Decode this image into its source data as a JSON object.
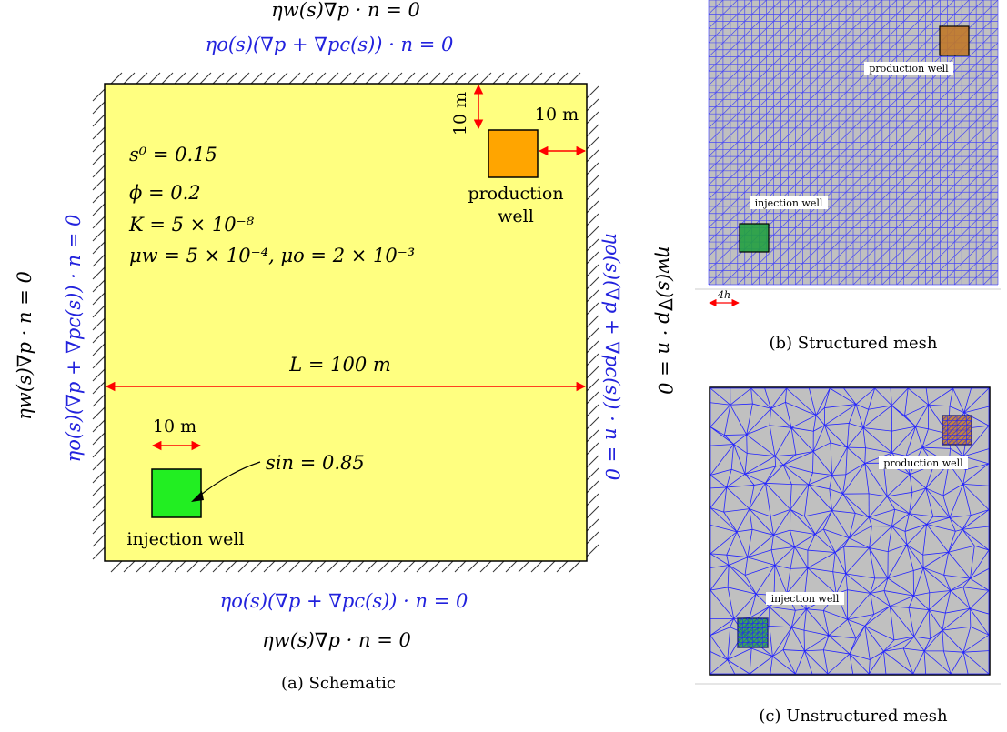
{
  "schematic": {
    "bc_top_water": "ηw(s)∇p · n = 0",
    "bc_top_oil": "ηo(s)(∇p + ∇pc(s)) · n = 0",
    "bc_bottom_oil": "ηo(s)(∇p + ∇pc(s)) · n = 0",
    "bc_bottom_water": "ηw(s)∇p · n = 0",
    "bc_left_water": "ηw(s)∇p · n = 0",
    "bc_left_oil": "ηo(s)(∇p + ∇pc(s)) · n = 0",
    "bc_right_oil": "ηo(s)(∇p + ∇pc(s)) · n = 0",
    "bc_right_water": "ηw(s)∇p · n = 0",
    "params": [
      "s⁰ = 0.15",
      "ϕ = 0.2",
      "K = 5 × 10⁻⁸",
      "μw = 5 × 10⁻⁴, μo = 2 × 10⁻³"
    ],
    "length_label": "L = 100 m",
    "prod_dim_vertical": "10 m",
    "prod_dim_horizontal": "10 m",
    "inj_dim": "10 m",
    "production_well_line1": "production",
    "production_well_line2": "well",
    "injection_well": "injection well",
    "s_in_label": "sin = 0.85",
    "caption": "(a) Schematic",
    "colors": {
      "domain": "#ffff80",
      "production": "#ffa500",
      "injection": "#22ee22",
      "water_bc": "#000000",
      "oil_bc": "#2222dd",
      "dimension": "#ff0000"
    }
  },
  "structured": {
    "production_label": "production well",
    "injection_label": "injection well",
    "scale_label": "4h",
    "caption": "(b) Structured mesh",
    "colors": {
      "background": "#c0c0c0",
      "mesh": "#3333ff",
      "production": "#c07828",
      "injection": "#22a040"
    }
  },
  "unstructured": {
    "production_label": "production well",
    "injection_label": "injection well",
    "caption": "(c) Unstructured mesh",
    "colors": {
      "background": "#c0c0c0",
      "mesh": "#2222ff",
      "production": "#c07828",
      "injection": "#22a040"
    }
  }
}
